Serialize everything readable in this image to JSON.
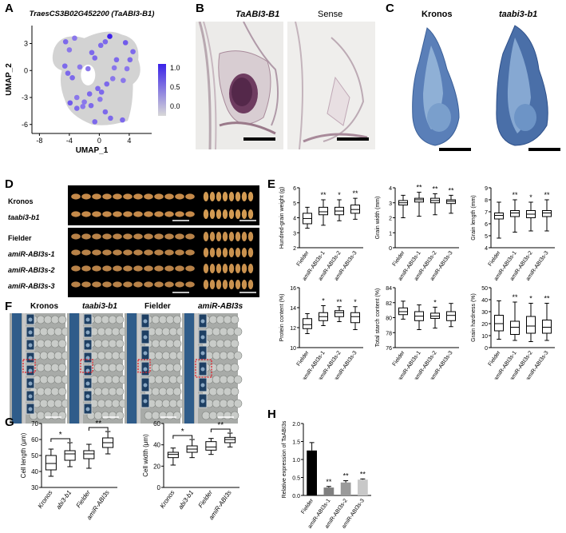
{
  "panels": {
    "A": {
      "letter": "A",
      "title": "TraesCS3B02G452200 (TaABI3-B1)",
      "xlabel": "UMAP_1",
      "ylabel": "UMAP_2",
      "xticks": [
        "-8",
        "-4",
        "0",
        "4"
      ],
      "yticks": [
        "3",
        "0",
        "-3",
        "-6"
      ],
      "colorbar": [
        "1.0",
        "0.5",
        "0.0"
      ]
    },
    "B": {
      "letter": "B",
      "left": "TaABI3-B1",
      "right": "Sense"
    },
    "C": {
      "letter": "C",
      "left": "Kronos",
      "right": "taabi3-b1"
    },
    "D": {
      "letter": "D",
      "rows": [
        "Kronos",
        "taabi3-b1",
        "Fielder",
        "amiR-ABI3s-1",
        "amiR-ABI3s-2",
        "amiR-ABI3s-3"
      ]
    },
    "E": {
      "letter": "E",
      "categories": [
        "Fielder",
        "amiR-ABI3s-1",
        "amiR-ABI3s-2",
        "amiR-ABI3s-3"
      ],
      "plots": [
        {
          "ylabel": "Hundred-grain weight (g)",
          "yticks": [
            "6",
            "5",
            "4",
            "3",
            "2"
          ],
          "sig": [
            "",
            "**",
            "*",
            "**"
          ]
        },
        {
          "ylabel": "Grain width (mm)",
          "yticks": [
            "4",
            "3",
            "2",
            "1",
            "0"
          ],
          "sig": [
            "",
            "**",
            "**",
            "**"
          ]
        },
        {
          "ylabel": "Grain length (mm)",
          "yticks": [
            "9",
            "8",
            "7",
            "6",
            "5",
            "4"
          ],
          "sig": [
            "",
            "**",
            "*",
            "**"
          ]
        },
        {
          "ylabel": "Protein content (%)",
          "yticks": [
            "16",
            "14",
            "12",
            "10"
          ],
          "sig": [
            "",
            "*",
            "**",
            "*"
          ]
        },
        {
          "ylabel": "Total starch content (%)",
          "yticks": [
            "84",
            "82",
            "80",
            "78",
            "76"
          ],
          "sig": [
            "",
            "",
            "*",
            ""
          ]
        },
        {
          "ylabel": "Grain hardness (%)",
          "yticks": [
            "50",
            "40",
            "30",
            "20",
            "10",
            "0"
          ],
          "sig": [
            "",
            "**",
            "*",
            "**"
          ]
        }
      ]
    },
    "F": {
      "letter": "F",
      "labels": [
        "Kronos",
        "taabi3-b1",
        "Fielder",
        "amiR-ABI3s"
      ]
    },
    "G": {
      "letter": "G",
      "categories": [
        "Kronos",
        "abi3-b1",
        "Fielder",
        "amiR-ABI3s"
      ],
      "plots": [
        {
          "ylabel": "Cell length (μm)",
          "yticks": [
            "70",
            "60",
            "50",
            "40",
            "30"
          ],
          "sig": [
            "*",
            "**"
          ]
        },
        {
          "ylabel": "Cell width (μm)",
          "yticks": [
            "60",
            "40",
            "20",
            "0"
          ],
          "sig": [
            "*",
            "**"
          ]
        }
      ]
    },
    "H": {
      "letter": "H",
      "ylabel": "Relative expression of TaABI3s",
      "yticks": [
        "2.0",
        "1.5",
        "1.0",
        "0.5",
        "0.0"
      ],
      "categories": [
        "Fielder",
        "amiR-ABI3s-1",
        "amiR-ABI3s-2",
        "amiR-ABI3s-3"
      ],
      "sig": [
        "",
        "**",
        "**",
        "**"
      ]
    }
  },
  "chart_data": [
    {
      "type": "scatter",
      "title": "TraesCS3B02G452200 (TaABI3-B1)",
      "xlabel": "UMAP_1",
      "ylabel": "UMAP_2",
      "xlim": [
        -9,
        7
      ],
      "ylim": [
        -7,
        5
      ],
      "points": [
        {
          "x": -4.5,
          "y": 3.2,
          "v": 0.6
        },
        {
          "x": -4.0,
          "y": 2.3,
          "v": 0.5
        },
        {
          "x": -3.3,
          "y": 3.6,
          "v": 0.5
        },
        {
          "x": -4.6,
          "y": 0.5,
          "v": 0.6
        },
        {
          "x": -4.2,
          "y": -0.3,
          "v": 0.6
        },
        {
          "x": -3.6,
          "y": -0.8,
          "v": 0.6
        },
        {
          "x": -2.6,
          "y": 0.4,
          "v": 0.5
        },
        {
          "x": -1.5,
          "y": 0.2,
          "v": 0.5
        },
        {
          "x": -1.0,
          "y": 2.0,
          "v": 0.6
        },
        {
          "x": -0.6,
          "y": 1.4,
          "v": 0.6
        },
        {
          "x": 0.2,
          "y": 2.8,
          "v": 0.6
        },
        {
          "x": 0.8,
          "y": 3.2,
          "v": 0.6
        },
        {
          "x": 1.4,
          "y": 3.8,
          "v": 1.1
        },
        {
          "x": 2.3,
          "y": 1.2,
          "v": 0.6
        },
        {
          "x": 3.5,
          "y": 3.1,
          "v": 0.7
        },
        {
          "x": 4.5,
          "y": 2.1,
          "v": 0.6
        },
        {
          "x": 4.1,
          "y": 1.2,
          "v": 0.6
        },
        {
          "x": 3.7,
          "y": 0.2,
          "v": 0.5
        },
        {
          "x": 2.0,
          "y": 0.3,
          "v": 0.5
        },
        {
          "x": 1.8,
          "y": -0.9,
          "v": 0.5
        },
        {
          "x": 3.2,
          "y": -1.1,
          "v": 0.5
        },
        {
          "x": -0.2,
          "y": -2.0,
          "v": 0.6
        },
        {
          "x": 0.3,
          "y": -2.4,
          "v": 0.6
        },
        {
          "x": -3.0,
          "y": -3.0,
          "v": 0.5
        },
        {
          "x": -2.0,
          "y": -3.5,
          "v": 0.5
        },
        {
          "x": -3.9,
          "y": -3.6,
          "v": 0.7
        },
        {
          "x": -3.0,
          "y": -4.2,
          "v": 0.6
        },
        {
          "x": -2.2,
          "y": -4.0,
          "v": 0.5
        },
        {
          "x": -1.1,
          "y": -3.9,
          "v": 0.6
        },
        {
          "x": 0.1,
          "y": -3.2,
          "v": 0.5
        },
        {
          "x": 0.8,
          "y": -4.6,
          "v": 0.6
        },
        {
          "x": 1.5,
          "y": -5.3,
          "v": 0.6
        },
        {
          "x": 3.1,
          "y": -5.5,
          "v": 0.6
        },
        {
          "x": -0.6,
          "y": -5.7,
          "v": 0.6
        },
        {
          "x": -1.3,
          "y": -2.6,
          "v": 0.6
        },
        {
          "x": 1.0,
          "y": -1.5,
          "v": 0.6
        }
      ]
    },
    {
      "type": "box",
      "categories": [
        "Fielder",
        "amiR-ABI3s-1",
        "amiR-ABI3s-2",
        "amiR-ABI3s-3"
      ],
      "ylabel": "Hundred-grain weight (g)",
      "ylim": [
        2,
        6
      ],
      "boxes": [
        [
          3.3,
          3.6,
          3.95,
          4.3,
          4.7
        ],
        [
          3.5,
          4.2,
          4.4,
          4.7,
          5.2
        ],
        [
          3.8,
          4.2,
          4.45,
          4.7,
          5.2
        ],
        [
          3.9,
          4.3,
          4.55,
          4.85,
          5.3
        ]
      ]
    },
    {
      "type": "box",
      "categories": [
        "Fielder",
        "amiR-ABI3s-1",
        "amiR-ABI3s-2",
        "amiR-ABI3s-3"
      ],
      "ylabel": "Grain width (mm)",
      "ylim": [
        0,
        4
      ],
      "boxes": [
        [
          2.0,
          2.85,
          3.0,
          3.15,
          3.5
        ],
        [
          2.1,
          3.05,
          3.2,
          3.3,
          3.7
        ],
        [
          2.2,
          3.0,
          3.15,
          3.3,
          3.6
        ],
        [
          2.3,
          2.95,
          3.1,
          3.2,
          3.5
        ]
      ]
    },
    {
      "type": "box",
      "categories": [
        "Fielder",
        "amiR-ABI3s-1",
        "amiR-ABI3s-2",
        "amiR-ABI3s-3"
      ],
      "ylabel": "Grain length (mm)",
      "ylim": [
        4,
        9
      ],
      "boxes": [
        [
          4.8,
          6.4,
          6.7,
          6.9,
          7.8
        ],
        [
          5.3,
          6.6,
          6.9,
          7.1,
          8.0
        ],
        [
          5.4,
          6.5,
          6.8,
          7.1,
          7.8
        ],
        [
          5.4,
          6.6,
          6.9,
          7.1,
          8.0
        ]
      ]
    },
    {
      "type": "box",
      "categories": [
        "Fielder",
        "amiR-ABI3s-1",
        "amiR-ABI3s-2",
        "amiR-ABI3s-3"
      ],
      "ylabel": "Protein content (%)",
      "ylim": [
        10,
        16
      ],
      "boxes": [
        [
          11.4,
          11.9,
          12.3,
          12.9,
          13.4
        ],
        [
          12.2,
          12.7,
          13.1,
          13.5,
          14.2
        ],
        [
          12.6,
          13.1,
          13.5,
          13.7,
          14.1
        ],
        [
          11.8,
          12.5,
          13.1,
          13.5,
          14.1
        ]
      ]
    },
    {
      "type": "box",
      "categories": [
        "Fielder",
        "amiR-ABI3s-1",
        "amiR-ABI3s-2",
        "amiR-ABI3s-3"
      ],
      "ylabel": "Total starch content (%)",
      "ylim": [
        76,
        84
      ],
      "boxes": [
        [
          79.8,
          80.4,
          80.8,
          81.3,
          82.2
        ],
        [
          78.4,
          79.6,
          80.2,
          80.8,
          81.7
        ],
        [
          78.6,
          79.9,
          80.2,
          80.6,
          81.4
        ],
        [
          78.8,
          79.6,
          80.3,
          80.8,
          81.9
        ]
      ]
    },
    {
      "type": "box",
      "categories": [
        "Fielder",
        "amiR-ABI3s-1",
        "amiR-ABI3s-2",
        "amiR-ABI3s-3"
      ],
      "ylabel": "Grain hardness (%)",
      "ylim": [
        0,
        50
      ],
      "boxes": [
        [
          7,
          14,
          20,
          27,
          39
        ],
        [
          6,
          11,
          17,
          22,
          38
        ],
        [
          5,
          12,
          18,
          26,
          37
        ],
        [
          6,
          12,
          17,
          23,
          37
        ]
      ]
    },
    {
      "type": "box",
      "categories": [
        "Kronos",
        "abi3-b1",
        "Fielder",
        "amiR-ABI3s"
      ],
      "ylabel": "Cell length (μm)",
      "ylim": [
        30,
        70
      ],
      "boxes": [
        [
          37,
          41,
          45,
          50,
          54
        ],
        [
          43,
          47,
          51,
          53,
          58
        ],
        [
          42,
          48,
          51,
          53,
          57
        ],
        [
          51,
          55,
          58,
          61,
          65
        ]
      ]
    },
    {
      "type": "box",
      "categories": [
        "Kronos",
        "abi3-b1",
        "Fielder",
        "amiR-ABI3s"
      ],
      "ylabel": "Cell width (μm)",
      "ylim": [
        0,
        60
      ],
      "boxes": [
        [
          21,
          28,
          31,
          33,
          37
        ],
        [
          28,
          33,
          36,
          39,
          45
        ],
        [
          31,
          35,
          38,
          43,
          46
        ],
        [
          38,
          42,
          45,
          47,
          51
        ]
      ]
    },
    {
      "type": "bar",
      "categories": [
        "Fielder",
        "amiR-ABI3s-1",
        "amiR-ABI3s-2",
        "amiR-ABI3s-3"
      ],
      "ylabel": "Relative expression of TaABI3s",
      "ylim": [
        0,
        2
      ],
      "values": [
        1.25,
        0.22,
        0.36,
        0.44
      ],
      "errors": [
        0.22,
        0.03,
        0.05,
        0.02
      ],
      "colors": [
        "#000000",
        "#7f7f7f",
        "#9a9a9a",
        "#c8c8c8"
      ]
    }
  ]
}
